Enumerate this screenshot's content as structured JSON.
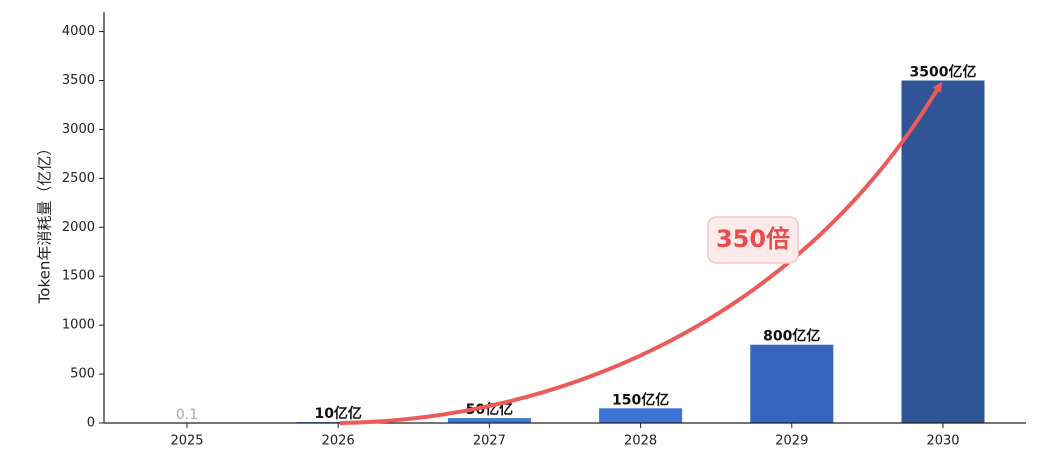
{
  "chart_data": {
    "type": "bar",
    "y_label": "Token年消耗量（亿亿）",
    "annotation": "350倍",
    "categories": [
      "2025",
      "2026",
      "2027",
      "2028",
      "2029",
      "2030"
    ],
    "values": [
      0.1,
      10,
      50,
      150,
      800,
      3500
    ],
    "value_labels": [
      "0.1",
      "10亿亿",
      "50亿亿",
      "150亿亿",
      "800亿亿",
      "3500亿亿"
    ],
    "colors": [
      "#4a86e8",
      "#4a86e8",
      "#3d7ad6",
      "#3b74d4",
      "#3565bd",
      "#2f5597"
    ],
    "value_label_colors": [
      "#aaaaaa",
      "#111111",
      "#111111",
      "#111111",
      "#111111",
      "#111111"
    ],
    "ylim": [
      0,
      4200
    ],
    "yticks": [
      0,
      500,
      1000,
      1500,
      2000,
      2500,
      3000,
      3500,
      4000
    ]
  }
}
